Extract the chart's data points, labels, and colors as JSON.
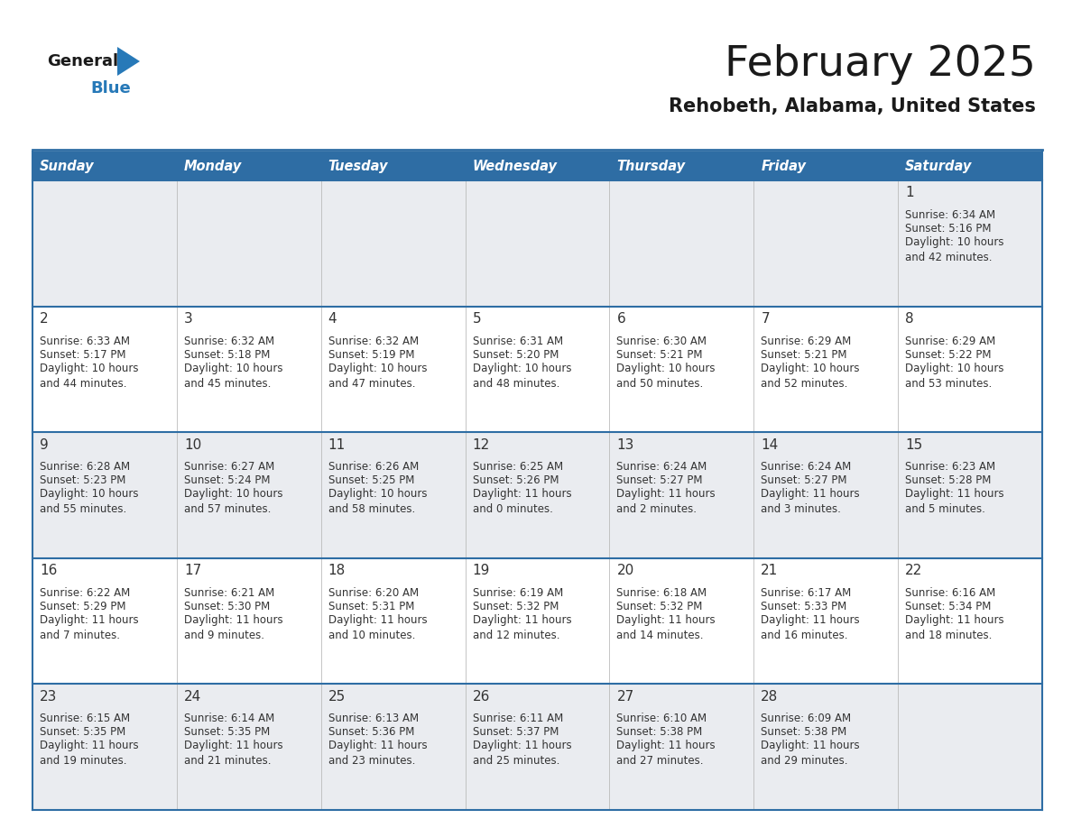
{
  "title": "February 2025",
  "subtitle": "Rehobeth, Alabama, United States",
  "header_bg": "#2E6DA4",
  "header_text_color": "#FFFFFF",
  "row_bg_even": "#EAECF0",
  "row_bg_odd": "#FFFFFF",
  "border_color": "#2E6DA4",
  "cell_border_color": "#AAAAAA",
  "day_headers": [
    "Sunday",
    "Monday",
    "Tuesday",
    "Wednesday",
    "Thursday",
    "Friday",
    "Saturday"
  ],
  "cell_data": [
    [
      null,
      null,
      null,
      null,
      null,
      null,
      {
        "day": 1,
        "sunrise": "Sunrise: 6:34 AM",
        "sunset": "Sunset: 5:16 PM",
        "daylight": "Daylight: 10 hours\nand 42 minutes."
      }
    ],
    [
      {
        "day": 2,
        "sunrise": "Sunrise: 6:33 AM",
        "sunset": "Sunset: 5:17 PM",
        "daylight": "Daylight: 10 hours\nand 44 minutes."
      },
      {
        "day": 3,
        "sunrise": "Sunrise: 6:32 AM",
        "sunset": "Sunset: 5:18 PM",
        "daylight": "Daylight: 10 hours\nand 45 minutes."
      },
      {
        "day": 4,
        "sunrise": "Sunrise: 6:32 AM",
        "sunset": "Sunset: 5:19 PM",
        "daylight": "Daylight: 10 hours\nand 47 minutes."
      },
      {
        "day": 5,
        "sunrise": "Sunrise: 6:31 AM",
        "sunset": "Sunset: 5:20 PM",
        "daylight": "Daylight: 10 hours\nand 48 minutes."
      },
      {
        "day": 6,
        "sunrise": "Sunrise: 6:30 AM",
        "sunset": "Sunset: 5:21 PM",
        "daylight": "Daylight: 10 hours\nand 50 minutes."
      },
      {
        "day": 7,
        "sunrise": "Sunrise: 6:29 AM",
        "sunset": "Sunset: 5:21 PM",
        "daylight": "Daylight: 10 hours\nand 52 minutes."
      },
      {
        "day": 8,
        "sunrise": "Sunrise: 6:29 AM",
        "sunset": "Sunset: 5:22 PM",
        "daylight": "Daylight: 10 hours\nand 53 minutes."
      }
    ],
    [
      {
        "day": 9,
        "sunrise": "Sunrise: 6:28 AM",
        "sunset": "Sunset: 5:23 PM",
        "daylight": "Daylight: 10 hours\nand 55 minutes."
      },
      {
        "day": 10,
        "sunrise": "Sunrise: 6:27 AM",
        "sunset": "Sunset: 5:24 PM",
        "daylight": "Daylight: 10 hours\nand 57 minutes."
      },
      {
        "day": 11,
        "sunrise": "Sunrise: 6:26 AM",
        "sunset": "Sunset: 5:25 PM",
        "daylight": "Daylight: 10 hours\nand 58 minutes."
      },
      {
        "day": 12,
        "sunrise": "Sunrise: 6:25 AM",
        "sunset": "Sunset: 5:26 PM",
        "daylight": "Daylight: 11 hours\nand 0 minutes."
      },
      {
        "day": 13,
        "sunrise": "Sunrise: 6:24 AM",
        "sunset": "Sunset: 5:27 PM",
        "daylight": "Daylight: 11 hours\nand 2 minutes."
      },
      {
        "day": 14,
        "sunrise": "Sunrise: 6:24 AM",
        "sunset": "Sunset: 5:27 PM",
        "daylight": "Daylight: 11 hours\nand 3 minutes."
      },
      {
        "day": 15,
        "sunrise": "Sunrise: 6:23 AM",
        "sunset": "Sunset: 5:28 PM",
        "daylight": "Daylight: 11 hours\nand 5 minutes."
      }
    ],
    [
      {
        "day": 16,
        "sunrise": "Sunrise: 6:22 AM",
        "sunset": "Sunset: 5:29 PM",
        "daylight": "Daylight: 11 hours\nand 7 minutes."
      },
      {
        "day": 17,
        "sunrise": "Sunrise: 6:21 AM",
        "sunset": "Sunset: 5:30 PM",
        "daylight": "Daylight: 11 hours\nand 9 minutes."
      },
      {
        "day": 18,
        "sunrise": "Sunrise: 6:20 AM",
        "sunset": "Sunset: 5:31 PM",
        "daylight": "Daylight: 11 hours\nand 10 minutes."
      },
      {
        "day": 19,
        "sunrise": "Sunrise: 6:19 AM",
        "sunset": "Sunset: 5:32 PM",
        "daylight": "Daylight: 11 hours\nand 12 minutes."
      },
      {
        "day": 20,
        "sunrise": "Sunrise: 6:18 AM",
        "sunset": "Sunset: 5:32 PM",
        "daylight": "Daylight: 11 hours\nand 14 minutes."
      },
      {
        "day": 21,
        "sunrise": "Sunrise: 6:17 AM",
        "sunset": "Sunset: 5:33 PM",
        "daylight": "Daylight: 11 hours\nand 16 minutes."
      },
      {
        "day": 22,
        "sunrise": "Sunrise: 6:16 AM",
        "sunset": "Sunset: 5:34 PM",
        "daylight": "Daylight: 11 hours\nand 18 minutes."
      }
    ],
    [
      {
        "day": 23,
        "sunrise": "Sunrise: 6:15 AM",
        "sunset": "Sunset: 5:35 PM",
        "daylight": "Daylight: 11 hours\nand 19 minutes."
      },
      {
        "day": 24,
        "sunrise": "Sunrise: 6:14 AM",
        "sunset": "Sunset: 5:35 PM",
        "daylight": "Daylight: 11 hours\nand 21 minutes."
      },
      {
        "day": 25,
        "sunrise": "Sunrise: 6:13 AM",
        "sunset": "Sunset: 5:36 PM",
        "daylight": "Daylight: 11 hours\nand 23 minutes."
      },
      {
        "day": 26,
        "sunrise": "Sunrise: 6:11 AM",
        "sunset": "Sunset: 5:37 PM",
        "daylight": "Daylight: 11 hours\nand 25 minutes."
      },
      {
        "day": 27,
        "sunrise": "Sunrise: 6:10 AM",
        "sunset": "Sunset: 5:38 PM",
        "daylight": "Daylight: 11 hours\nand 27 minutes."
      },
      {
        "day": 28,
        "sunrise": "Sunrise: 6:09 AM",
        "sunset": "Sunset: 5:38 PM",
        "daylight": "Daylight: 11 hours\nand 29 minutes."
      },
      null
    ]
  ],
  "logo_color_general": "#1a1a1a",
  "logo_color_blue": "#2779B8",
  "logo_triangle_color": "#2779B8"
}
